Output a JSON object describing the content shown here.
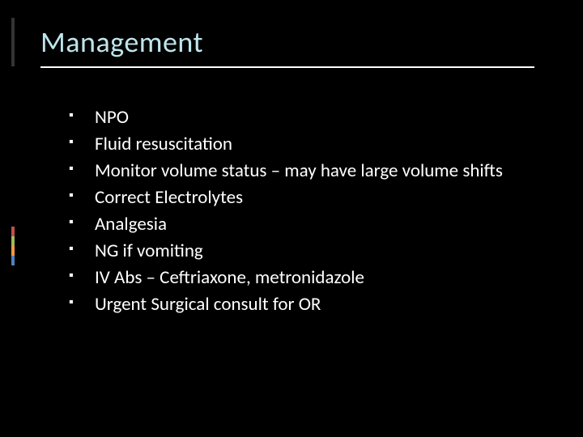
{
  "slide": {
    "title": "Management",
    "title_color": "#bfe4ec",
    "title_fontsize": 36,
    "underline_color": "#ffffff",
    "background_color": "#000000",
    "body_text_color": "#ffffff",
    "body_fontsize": 23,
    "bullet_marker": "▪",
    "bullets": [
      "NPO",
      "Fluid resuscitation",
      "Monitor volume status – may have large volume shifts",
      "Correct Electrolytes",
      "Analgesia",
      "NG if vomiting",
      "IV Abs – Ceftriaxone, metronidazole",
      "Urgent Surgical consult for OR"
    ],
    "accent_stripe_colors": [
      "#c0504d",
      "#9bbb59",
      "#f79646",
      "#4f81bd"
    ]
  }
}
